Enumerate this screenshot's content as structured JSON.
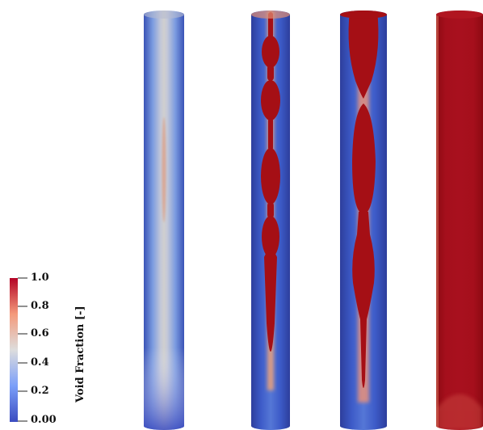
{
  "colorbar": {
    "title": "Void Fraction [-]",
    "ticks": [
      "1.0",
      "0.8",
      "0.6",
      "0.4",
      "0.2",
      "0.00"
    ],
    "colors": {
      "low": "#3b4cc0",
      "mid": "#dddddd",
      "high": "#b40426"
    }
  },
  "panels": [
    {
      "name": "panel-1",
      "description_fill": "mostly-liquid",
      "core_color": "#c9c9c9"
    },
    {
      "name": "panel-2",
      "description_fill": "bubbly-slug",
      "core_color": "#a50f15"
    },
    {
      "name": "panel-3",
      "description_fill": "slug-churn",
      "core_color": "#a50f15"
    },
    {
      "name": "panel-4",
      "description_fill": "annular-gas",
      "core_color": "#a50f15"
    }
  ]
}
